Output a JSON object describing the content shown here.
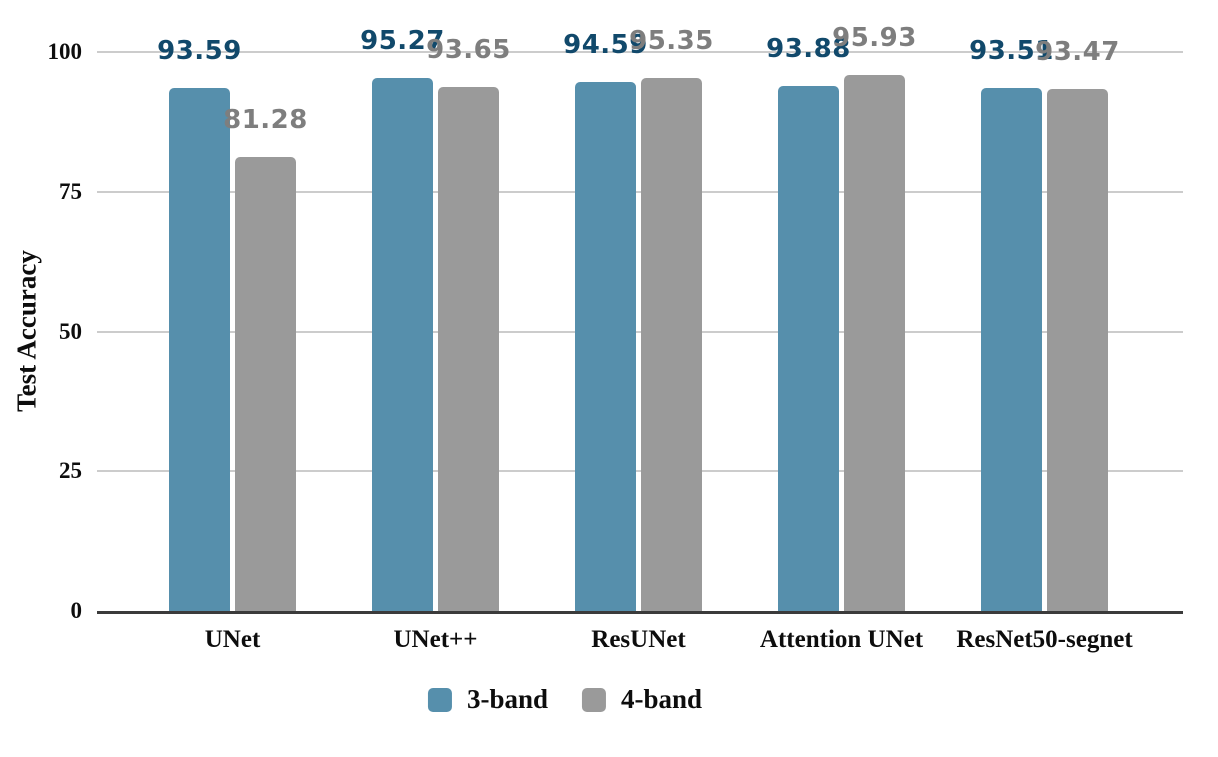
{
  "chart_data": {
    "type": "bar",
    "title": "",
    "ylabel": "Test Accuracy",
    "xlabel": "",
    "ylim": [
      0,
      100
    ],
    "yticks": [
      0,
      25,
      50,
      75,
      100
    ],
    "grid": true,
    "legend_position": "bottom",
    "categories": [
      "UNet",
      "UNet++",
      "ResUNet",
      "Attention UNet",
      "ResNet50-segnet"
    ],
    "series": [
      {
        "name": "3-band",
        "color": "#568fac",
        "label_color": "#11496b",
        "values": [
          93.59,
          95.27,
          94.59,
          93.88,
          93.51
        ],
        "value_labels": [
          "93.59",
          "95.27",
          "94.59",
          "93.88",
          "93.51"
        ]
      },
      {
        "name": "4-band",
        "color": "#9a9a9a",
        "label_color": "#7e7e7e",
        "values": [
          81.28,
          93.65,
          95.35,
          95.93,
          93.47
        ],
        "value_labels": [
          "81.28",
          "93.65",
          "95.35",
          "95.93",
          "93.47"
        ]
      }
    ],
    "colors": {
      "background": "#ffffff",
      "gridline": "#cccccc",
      "axis_line": "#3b3b3b",
      "text": "#0d0d0d"
    }
  }
}
